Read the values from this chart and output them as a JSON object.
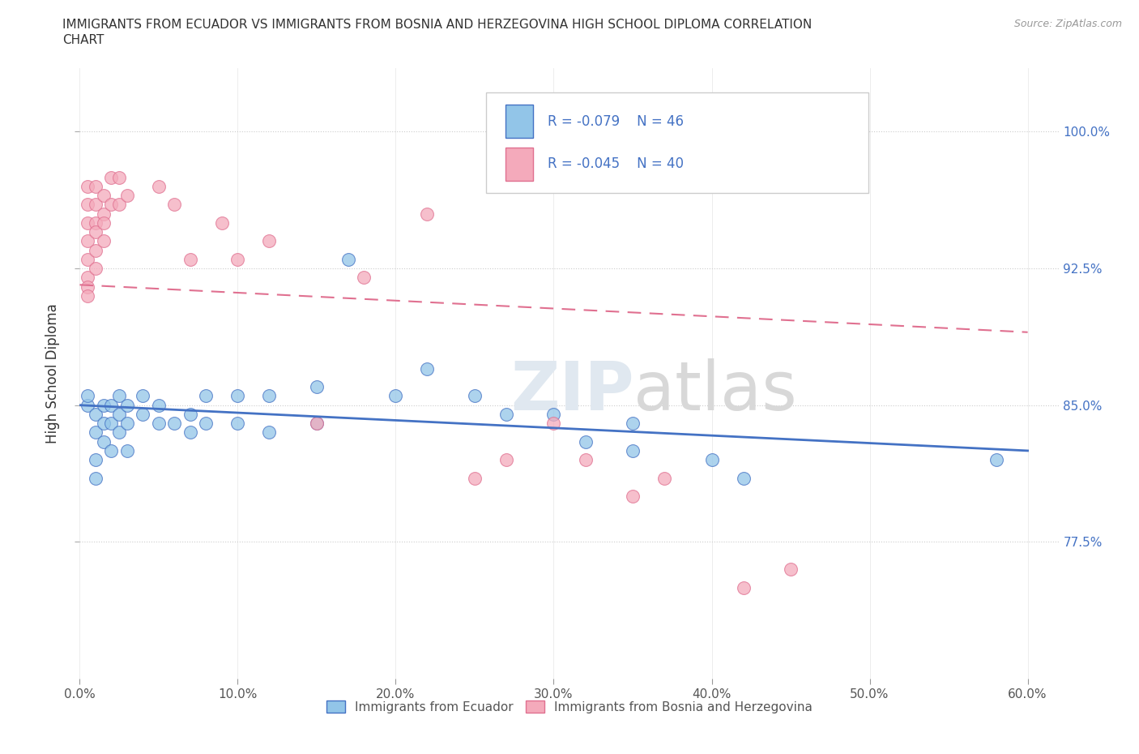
{
  "title_line1": "IMMIGRANTS FROM ECUADOR VS IMMIGRANTS FROM BOSNIA AND HERZEGOVINA HIGH SCHOOL DIPLOMA CORRELATION",
  "title_line2": "CHART",
  "source": "Source: ZipAtlas.com",
  "ylabel": "High School Diploma",
  "xlim": [
    0.0,
    0.62
  ],
  "ylim": [
    0.7,
    1.035
  ],
  "xtick_labels": [
    "0.0%",
    "",
    "",
    "",
    "",
    "",
    "",
    "",
    "",
    "",
    "10.0%",
    "",
    "",
    "",
    "",
    "",
    "",
    "",
    "",
    "",
    "20.0%",
    "",
    "",
    "",
    "",
    "",
    "",
    "",
    "",
    "",
    "30.0%",
    "",
    "",
    "",
    "",
    "",
    "",
    "",
    "",
    "",
    "40.0%",
    "",
    "",
    "",
    "",
    "",
    "",
    "",
    "",
    "",
    "50.0%",
    "",
    "",
    "",
    "",
    "",
    "",
    "",
    "",
    "",
    "60.0%"
  ],
  "xtick_values": [
    0.0,
    0.01,
    0.02,
    0.03,
    0.04,
    0.05,
    0.06,
    0.07,
    0.08,
    0.09,
    0.1,
    0.11,
    0.12,
    0.13,
    0.14,
    0.15,
    0.16,
    0.17,
    0.18,
    0.19,
    0.2,
    0.21,
    0.22,
    0.23,
    0.24,
    0.25,
    0.26,
    0.27,
    0.28,
    0.29,
    0.3,
    0.31,
    0.32,
    0.33,
    0.34,
    0.35,
    0.36,
    0.37,
    0.38,
    0.39,
    0.4,
    0.41,
    0.42,
    0.43,
    0.44,
    0.45,
    0.46,
    0.47,
    0.48,
    0.49,
    0.5,
    0.51,
    0.52,
    0.53,
    0.54,
    0.55,
    0.56,
    0.57,
    0.58,
    0.59,
    0.6
  ],
  "xtick_major": [
    0.0,
    0.1,
    0.2,
    0.3,
    0.4,
    0.5,
    0.6
  ],
  "xtick_major_labels": [
    "0.0%",
    "10.0%",
    "20.0%",
    "30.0%",
    "40.0%",
    "50.0%",
    "60.0%"
  ],
  "ytick_labels": [
    "77.5%",
    "85.0%",
    "92.5%",
    "100.0%"
  ],
  "ytick_values": [
    0.775,
    0.85,
    0.925,
    1.0
  ],
  "legend_labels_bottom": [
    "Immigrants from Ecuador",
    "Immigrants from Bosnia and Herzegovina"
  ],
  "color_ecuador": "#92C5E8",
  "color_bosnia": "#F4AABB",
  "color_ecuador_edge": "#4472C4",
  "color_bosnia_edge": "#E07090",
  "color_ecuador_line": "#4472C4",
  "color_bosnia_line": "#E07090",
  "watermark_zip": "ZIP",
  "watermark_atlas": "atlas",
  "ecuador_points": [
    [
      0.005,
      0.85
    ],
    [
      0.005,
      0.855
    ],
    [
      0.01,
      0.845
    ],
    [
      0.01,
      0.835
    ],
    [
      0.01,
      0.82
    ],
    [
      0.01,
      0.81
    ],
    [
      0.015,
      0.84
    ],
    [
      0.015,
      0.83
    ],
    [
      0.015,
      0.85
    ],
    [
      0.02,
      0.85
    ],
    [
      0.02,
      0.84
    ],
    [
      0.02,
      0.825
    ],
    [
      0.025,
      0.855
    ],
    [
      0.025,
      0.845
    ],
    [
      0.025,
      0.835
    ],
    [
      0.03,
      0.85
    ],
    [
      0.03,
      0.84
    ],
    [
      0.03,
      0.825
    ],
    [
      0.04,
      0.855
    ],
    [
      0.04,
      0.845
    ],
    [
      0.05,
      0.85
    ],
    [
      0.05,
      0.84
    ],
    [
      0.06,
      0.84
    ],
    [
      0.07,
      0.845
    ],
    [
      0.07,
      0.835
    ],
    [
      0.08,
      0.855
    ],
    [
      0.08,
      0.84
    ],
    [
      0.1,
      0.855
    ],
    [
      0.1,
      0.84
    ],
    [
      0.12,
      0.855
    ],
    [
      0.12,
      0.835
    ],
    [
      0.15,
      0.86
    ],
    [
      0.15,
      0.84
    ],
    [
      0.17,
      0.93
    ],
    [
      0.2,
      0.855
    ],
    [
      0.22,
      0.87
    ],
    [
      0.25,
      0.855
    ],
    [
      0.27,
      0.845
    ],
    [
      0.3,
      0.845
    ],
    [
      0.32,
      0.83
    ],
    [
      0.35,
      0.84
    ],
    [
      0.35,
      0.825
    ],
    [
      0.4,
      0.82
    ],
    [
      0.42,
      0.81
    ],
    [
      0.58,
      0.82
    ]
  ],
  "bosnia_points": [
    [
      0.005,
      0.97
    ],
    [
      0.005,
      0.96
    ],
    [
      0.005,
      0.95
    ],
    [
      0.005,
      0.94
    ],
    [
      0.005,
      0.93
    ],
    [
      0.005,
      0.92
    ],
    [
      0.005,
      0.915
    ],
    [
      0.005,
      0.91
    ],
    [
      0.01,
      0.97
    ],
    [
      0.01,
      0.96
    ],
    [
      0.01,
      0.95
    ],
    [
      0.01,
      0.945
    ],
    [
      0.01,
      0.935
    ],
    [
      0.01,
      0.925
    ],
    [
      0.015,
      0.965
    ],
    [
      0.015,
      0.955
    ],
    [
      0.015,
      0.95
    ],
    [
      0.015,
      0.94
    ],
    [
      0.02,
      0.975
    ],
    [
      0.02,
      0.96
    ],
    [
      0.025,
      0.975
    ],
    [
      0.025,
      0.96
    ],
    [
      0.03,
      0.965
    ],
    [
      0.05,
      0.97
    ],
    [
      0.06,
      0.96
    ],
    [
      0.07,
      0.93
    ],
    [
      0.09,
      0.95
    ],
    [
      0.1,
      0.93
    ],
    [
      0.12,
      0.94
    ],
    [
      0.15,
      0.84
    ],
    [
      0.18,
      0.92
    ],
    [
      0.22,
      0.955
    ],
    [
      0.25,
      0.81
    ],
    [
      0.27,
      0.82
    ],
    [
      0.3,
      0.84
    ],
    [
      0.32,
      0.82
    ],
    [
      0.35,
      0.8
    ],
    [
      0.37,
      0.81
    ],
    [
      0.42,
      0.75
    ],
    [
      0.45,
      0.76
    ]
  ],
  "ecuador_line_x": [
    0.0,
    0.6
  ],
  "ecuador_line_y": [
    0.85,
    0.825
  ],
  "bosnia_line_x": [
    0.0,
    0.6
  ],
  "bosnia_line_y": [
    0.916,
    0.89
  ]
}
